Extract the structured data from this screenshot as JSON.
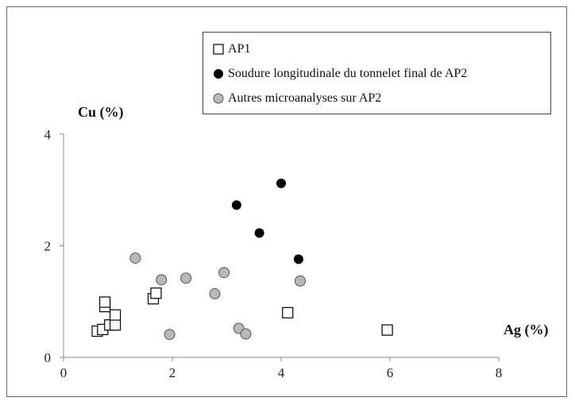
{
  "chart_data": {
    "type": "scatter",
    "xlabel": "Ag (%)",
    "ylabel": "Cu (%)",
    "xlim": [
      0,
      8
    ],
    "ylim": [
      0,
      4
    ],
    "xticks": [
      "0",
      "2",
      "4",
      "6",
      "8"
    ],
    "yticks": [
      "0",
      "2",
      "4"
    ],
    "grid": false,
    "legend_position": "top-right",
    "series": [
      {
        "name": "AP1",
        "marker": "open-square",
        "color": "#000000",
        "points": [
          {
            "x": 0.62,
            "y": 0.47
          },
          {
            "x": 0.72,
            "y": 0.5
          },
          {
            "x": 0.85,
            "y": 0.58
          },
          {
            "x": 0.95,
            "y": 0.58
          },
          {
            "x": 0.95,
            "y": 0.76
          },
          {
            "x": 0.76,
            "y": 0.91
          },
          {
            "x": 0.76,
            "y": 0.99
          },
          {
            "x": 1.65,
            "y": 1.05
          },
          {
            "x": 1.7,
            "y": 1.15
          },
          {
            "x": 4.12,
            "y": 0.8
          },
          {
            "x": 5.95,
            "y": 0.49
          }
        ]
      },
      {
        "name": "Soudure longitudinale du tonnelet final de AP2",
        "marker": "filled-circle",
        "color": "#000000",
        "points": [
          {
            "x": 3.18,
            "y": 2.73
          },
          {
            "x": 4.0,
            "y": 3.12
          },
          {
            "x": 3.6,
            "y": 2.23
          },
          {
            "x": 4.32,
            "y": 1.76
          }
        ]
      },
      {
        "name": "Autres microanalyses sur AP2",
        "marker": "grey-circle",
        "color": "#b8b8b8",
        "points": [
          {
            "x": 1.32,
            "y": 1.78
          },
          {
            "x": 1.8,
            "y": 1.39
          },
          {
            "x": 2.25,
            "y": 1.42
          },
          {
            "x": 2.95,
            "y": 1.52
          },
          {
            "x": 2.78,
            "y": 1.14
          },
          {
            "x": 4.35,
            "y": 1.37
          },
          {
            "x": 1.95,
            "y": 0.41
          },
          {
            "x": 3.22,
            "y": 0.52
          },
          {
            "x": 3.35,
            "y": 0.42
          }
        ]
      }
    ]
  }
}
